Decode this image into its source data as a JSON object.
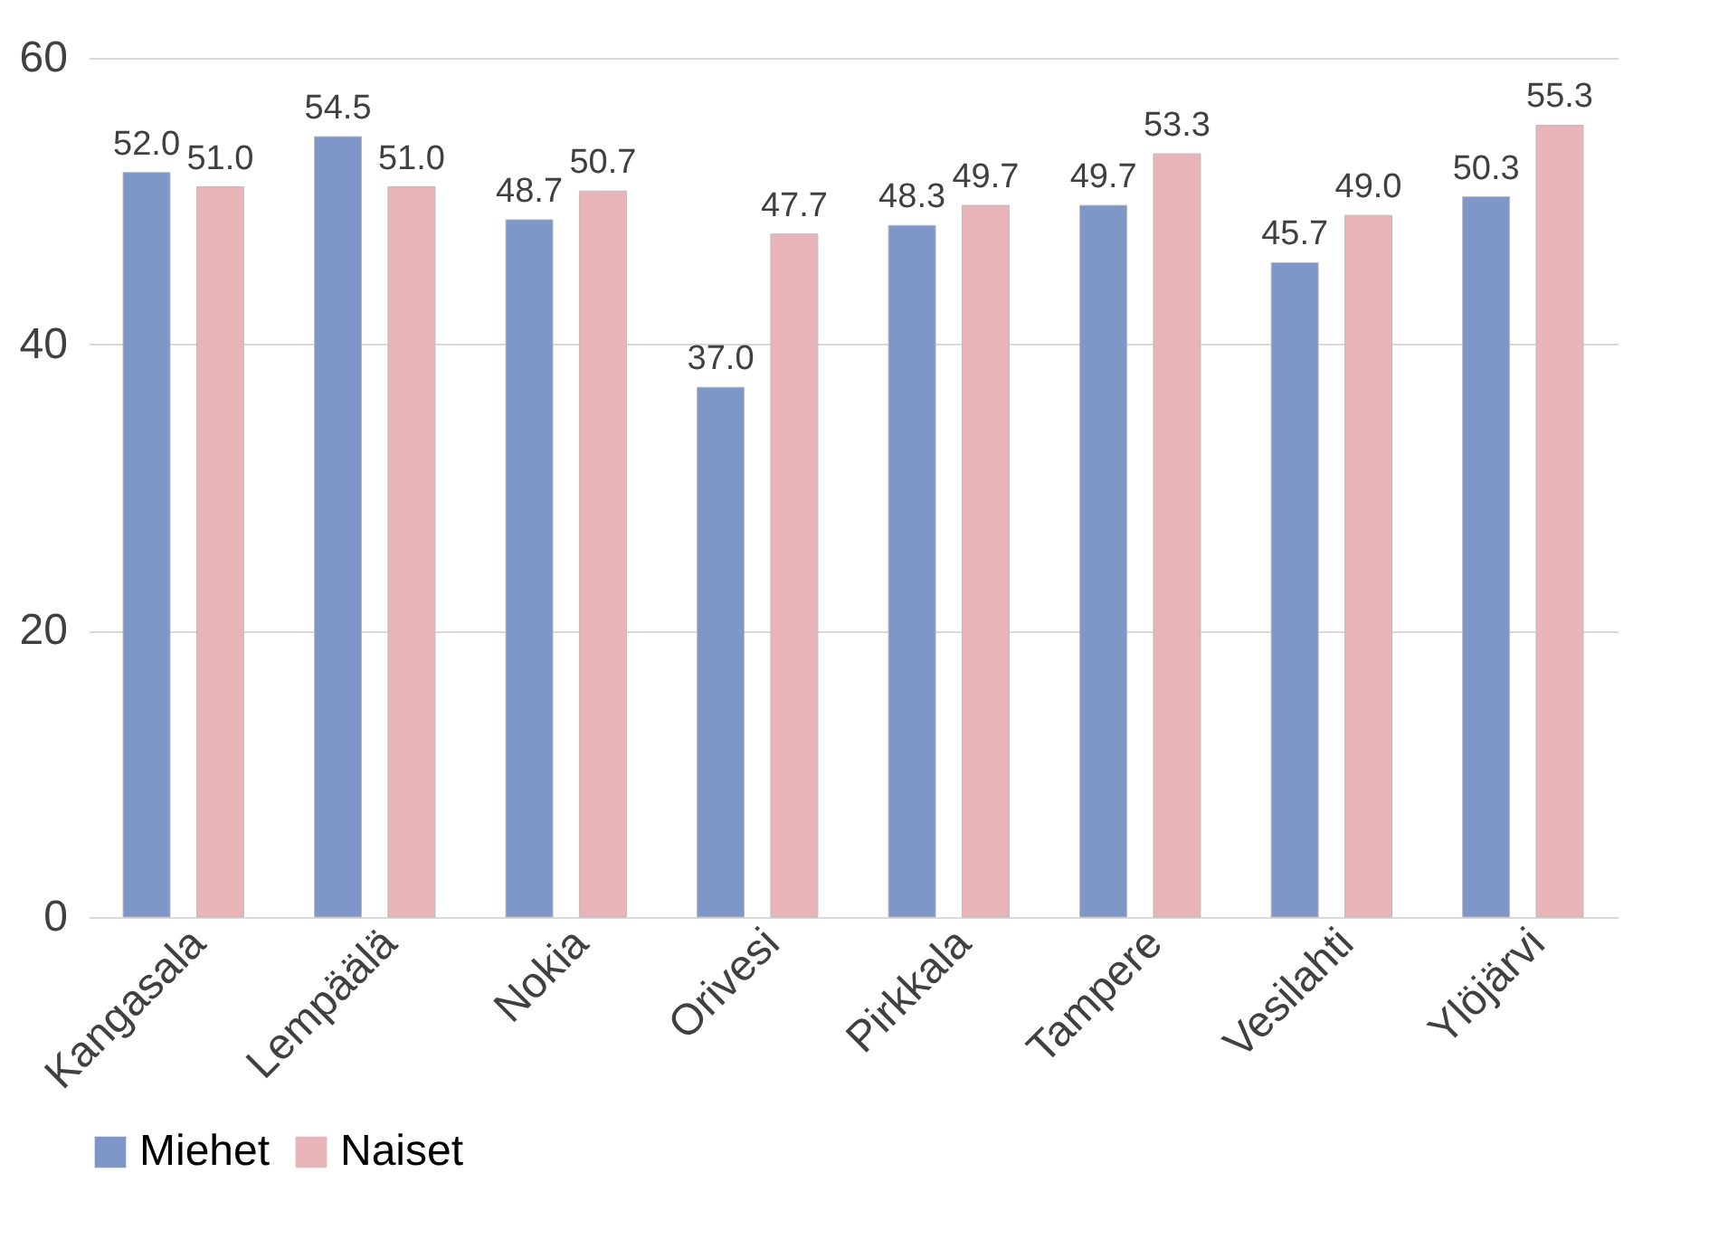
{
  "chart_data": {
    "type": "bar",
    "categories": [
      "Kangasala",
      "Lempäälä",
      "Nokia",
      "Orivesi",
      "Pirkkala",
      "Tampere",
      "Vesilahti",
      "Ylöjärvi"
    ],
    "series": [
      {
        "name": "Miehet",
        "color": "#7f96c8",
        "values": [
          52.0,
          54.5,
          48.7,
          37.0,
          48.3,
          49.7,
          45.7,
          50.3
        ],
        "value_labels": [
          "52.0",
          "54.5",
          "48.7",
          "37.0",
          "48.3",
          "49.7",
          "45.7",
          "50.3"
        ]
      },
      {
        "name": "Naiset",
        "color": "#e8b4b8",
        "values": [
          51.0,
          51.0,
          50.7,
          47.7,
          49.7,
          53.3,
          49.0,
          55.3
        ],
        "value_labels": [
          "51.0",
          "51.0",
          "50.7",
          "47.7",
          "49.7",
          "53.3",
          "49.0",
          "55.3"
        ]
      }
    ],
    "ylim": [
      0,
      60
    ],
    "yticks": [
      0,
      20,
      40,
      60
    ],
    "grid": "y",
    "legend": "bottom"
  }
}
